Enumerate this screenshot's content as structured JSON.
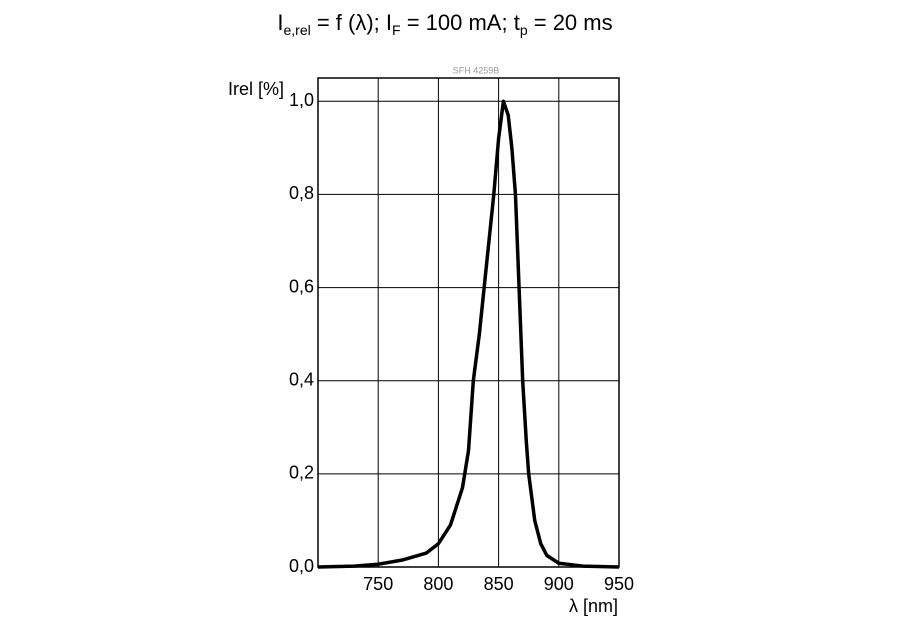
{
  "chart_data": {
    "type": "line",
    "title": [
      "I",
      "e,rel",
      " = f (λ); I",
      "F",
      " = 100 mA; t",
      "p",
      " = 20 ms"
    ],
    "subtitle": "SFH 4259B",
    "ylabel": "Irel [%]",
    "xlabel": "λ [nm]",
    "x": [
      700,
      730,
      750,
      770,
      790,
      800,
      810,
      820,
      825,
      829,
      834,
      838,
      842,
      846,
      850,
      854,
      858,
      861,
      864,
      867,
      870,
      873,
      875,
      880,
      885,
      890,
      900,
      920,
      950
    ],
    "series": [
      {
        "color": "#000000",
        "values": [
          0,
          0.002,
          0.006,
          0.015,
          0.03,
          0.05,
          0.09,
          0.17,
          0.25,
          0.4,
          0.5,
          0.6,
          0.7,
          0.8,
          0.92,
          1.0,
          0.97,
          0.9,
          0.8,
          0.6,
          0.4,
          0.27,
          0.2,
          0.1,
          0.05,
          0.025,
          0.008,
          0.002,
          0
        ]
      }
    ],
    "xlim": [
      700,
      950
    ],
    "xticks": [
      750,
      800,
      850,
      900,
      950
    ],
    "ylim": [
      0,
      1.05
    ],
    "yticks": [
      {
        "value": 0,
        "label": "0,0"
      },
      {
        "value": 0.2,
        "label": "0,2"
      },
      {
        "value": 0.4,
        "label": "0,4"
      },
      {
        "value": 0.6,
        "label": "0,6"
      },
      {
        "value": 0.8,
        "label": "0,8"
      },
      {
        "value": 1.0,
        "label": "1,0"
      }
    ],
    "grid": true
  }
}
